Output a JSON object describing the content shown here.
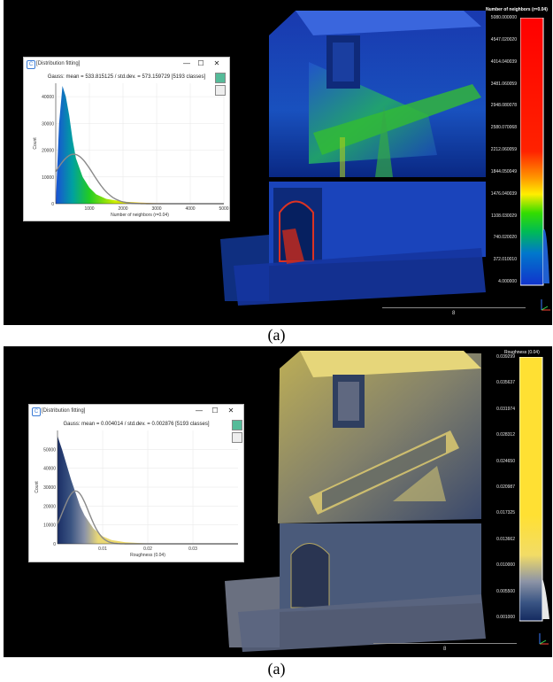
{
  "panel_a": {
    "caption": "(a)",
    "dialog": {
      "title": "[Distribution fitting]",
      "summary": "Gauss: mean = 533.815125 / std.dev. = 573.159729 [5193 classes]",
      "minimize_glyph": "—",
      "maximize_glyph": "☐",
      "close_glyph": "✕"
    },
    "chart_data": {
      "type": "area",
      "title": "Gauss: mean = 533.815125 / std.dev. = 573.159729 [5193 classes]",
      "xlabel": "Number of neighbors (r=0.04)",
      "ylabel": "Count",
      "xlim": [
        0,
        5000
      ],
      "ylim": [
        0,
        45000
      ],
      "xticks": [
        "1000",
        "2000",
        "3000",
        "4000",
        "5000"
      ],
      "yticks": [
        "0",
        "10000",
        "20000",
        "30000",
        "40000"
      ],
      "x": [
        0,
        100,
        200,
        300,
        400,
        500,
        600,
        800,
        1000,
        1200,
        1500,
        2000,
        2500,
        3000,
        4000,
        5000
      ],
      "series": [
        {
          "values": [
            300,
            30000,
            44000,
            40000,
            33000,
            24000,
            17000,
            10000,
            6000,
            3500,
            1800,
            800,
            400,
            200,
            80,
            20
          ]
        }
      ],
      "gauss_fit": {
        "mean": 533.815125,
        "std": 573.159729,
        "peak": 18500
      },
      "grid": true
    },
    "scale_bar": {
      "title": "Number of neighbors (r=0.04)",
      "labels": [
        "5080.000000",
        "4547.020020",
        "4014.040039",
        "3481.060059",
        "2948.080078",
        "2580.070068",
        "2212.060059",
        "1844.050049",
        "1476.040039",
        "1108.030029",
        "740.020020",
        "372.010010",
        "4.000000"
      ],
      "colors": [
        "#ff0000",
        "#ff3300",
        "#ff8800",
        "#ffcc00",
        "#ffff00",
        "#88ff00",
        "#00dd00",
        "#00aa44",
        "#0066cc",
        "#0033cc"
      ]
    },
    "scale_value": "8"
  },
  "panel_b": {
    "caption": "(a)",
    "dialog": {
      "title": "[Distribution fitting]",
      "summary": "Gauss: mean = 0.004014 / std.dev. = 0.002876 [5193 classes]",
      "minimize_glyph": "—",
      "maximize_glyph": "☐",
      "close_glyph": "✕"
    },
    "chart_data": {
      "type": "area",
      "title": "Gauss: mean = 0.004014 / std.dev. = 0.002876 [5193 classes]",
      "xlabel": "Roughness (0.04)",
      "ylabel": "Count",
      "xlim": [
        0,
        0.04
      ],
      "ylim": [
        0,
        60000
      ],
      "xticks": [
        "0.01",
        "0.02",
        "0.03"
      ],
      "yticks": [
        "0",
        "10000",
        "20000",
        "30000",
        "40000",
        "50000"
      ],
      "x": [
        0,
        0.001,
        0.002,
        0.003,
        0.004,
        0.005,
        0.006,
        0.008,
        0.01,
        0.012,
        0.015,
        0.02,
        0.025,
        0.03
      ],
      "series": [
        {
          "values": [
            57000,
            50000,
            42000,
            34000,
            27000,
            20000,
            15000,
            8000,
            4000,
            2000,
            800,
            200,
            60,
            10
          ]
        }
      ],
      "gauss_fit": {
        "mean": 0.004014,
        "std": 0.002876,
        "peak": 28000
      },
      "grid": true
    },
    "scale_bar": {
      "title": "Roughness (0.04)",
      "labels": [
        "0.039299",
        "0.035637",
        "0.031974",
        "0.028312",
        "0.024650",
        "0.020987",
        "0.017325",
        "0.013662",
        "0.010000",
        "0.005500",
        "0.001000"
      ],
      "colors": [
        "#ffe033",
        "#ffe033",
        "#ffe033",
        "#ffe033",
        "#f5dd55",
        "#cfc591",
        "#8a92a8",
        "#3c5582",
        "#1a2e66"
      ]
    },
    "scale_value": "8"
  }
}
